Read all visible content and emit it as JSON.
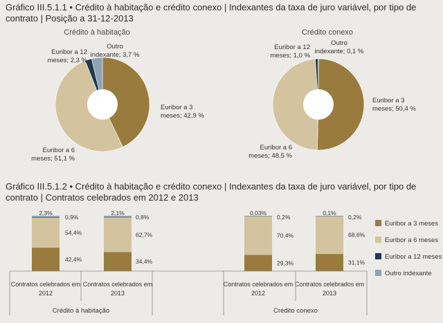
{
  "colors": {
    "euribor3": "#9a7b3e",
    "euribor6": "#d3c49f",
    "euribor12": "#1f3a4f",
    "outro": "#8ea4b4",
    "background": "#ecebe7"
  },
  "titles": {
    "chart1": "Gráfico III.5.1.1 • Crédito à habitação e crédito conexo | Indexantes da taxa de juro variável, por tipo de contrato | Posição a 31-12-2013",
    "chart2": "Gráfico III.5.1.2 • Crédito à habitação e crédito conexo | Indexantes da taxa de juro variável, por tipo de contrato | Contratos celebrados em 2012 e 2013"
  },
  "chart_data": [
    {
      "type": "pie",
      "title": "Crédito à habitação",
      "slices": [
        {
          "line1": "Euribor a 3",
          "line2": "meses; 42,9 %",
          "value": 42.9,
          "color_key": "euribor3"
        },
        {
          "line1": "Euribor a 6",
          "line2": "meses; 51,1 %",
          "value": 51.1,
          "color_key": "euribor6"
        },
        {
          "line1": "Euribor a 12",
          "line2": "meses; 2,3 %",
          "value": 2.3,
          "color_key": "euribor12"
        },
        {
          "line1": "Outro",
          "line2": "indexante; 3,7 %",
          "value": 3.7,
          "color_key": "outro"
        }
      ]
    },
    {
      "type": "pie",
      "title": "Crédito conexo",
      "slices": [
        {
          "line1": "Euribor a 3",
          "line2": "meses; 50,4 %",
          "value": 50.4,
          "color_key": "euribor3"
        },
        {
          "line1": "Euribor a 6",
          "line2": "meses; 48,5 %",
          "value": 48.5,
          "color_key": "euribor6"
        },
        {
          "line1": "Euribor a 12",
          "line2": "meses; 1,0 %",
          "value": 1.0,
          "color_key": "euribor12"
        },
        {
          "line1": "Outro",
          "line2": "indexante; 0,1 %",
          "value": 0.1,
          "color_key": "outro"
        }
      ]
    },
    {
      "type": "bar",
      "stacked": true,
      "ylim": [
        0,
        100
      ],
      "groups": [
        "Crédito à habitação",
        "Crédito conexo"
      ],
      "categories": [
        {
          "line1": "Contratos celebrados em",
          "line2": "2012",
          "group": 0
        },
        {
          "line1": "Contratos celebrados em",
          "line2": "2013",
          "group": 0
        },
        {
          "line1": "Contratos celebrados em",
          "line2": "2012",
          "group": 1
        },
        {
          "line1": "Contratos celebrados em",
          "line2": "2013",
          "group": 1
        }
      ],
      "series": [
        {
          "name": "Euribor a 3 meses",
          "color_key": "euribor3",
          "values": [
            42.4,
            34.4,
            29.3,
            31.1
          ],
          "labels": [
            "42,4%",
            "34,4%",
            "29,3%",
            "31,1%"
          ]
        },
        {
          "name": "Euribor a 6 meses",
          "color_key": "euribor6",
          "values": [
            54.4,
            62.7,
            70.4,
            68.6
          ],
          "labels": [
            "54,4%",
            "62,7%",
            "70,4%",
            "68,6%"
          ]
        },
        {
          "name": "Euribor a 12 meses",
          "color_key": "euribor12",
          "values": [
            0.9,
            0.8,
            0.2,
            0.2
          ],
          "labels": [
            "0,9%",
            "0,8%",
            "0,2%",
            "0,2%"
          ]
        },
        {
          "name": "Outro indexante",
          "color_key": "outro",
          "values": [
            2.3,
            2.1,
            0.03,
            0.1
          ],
          "labels": [
            "2,3%",
            "2,1%",
            "0,03%",
            "0,1%"
          ]
        }
      ]
    }
  ]
}
